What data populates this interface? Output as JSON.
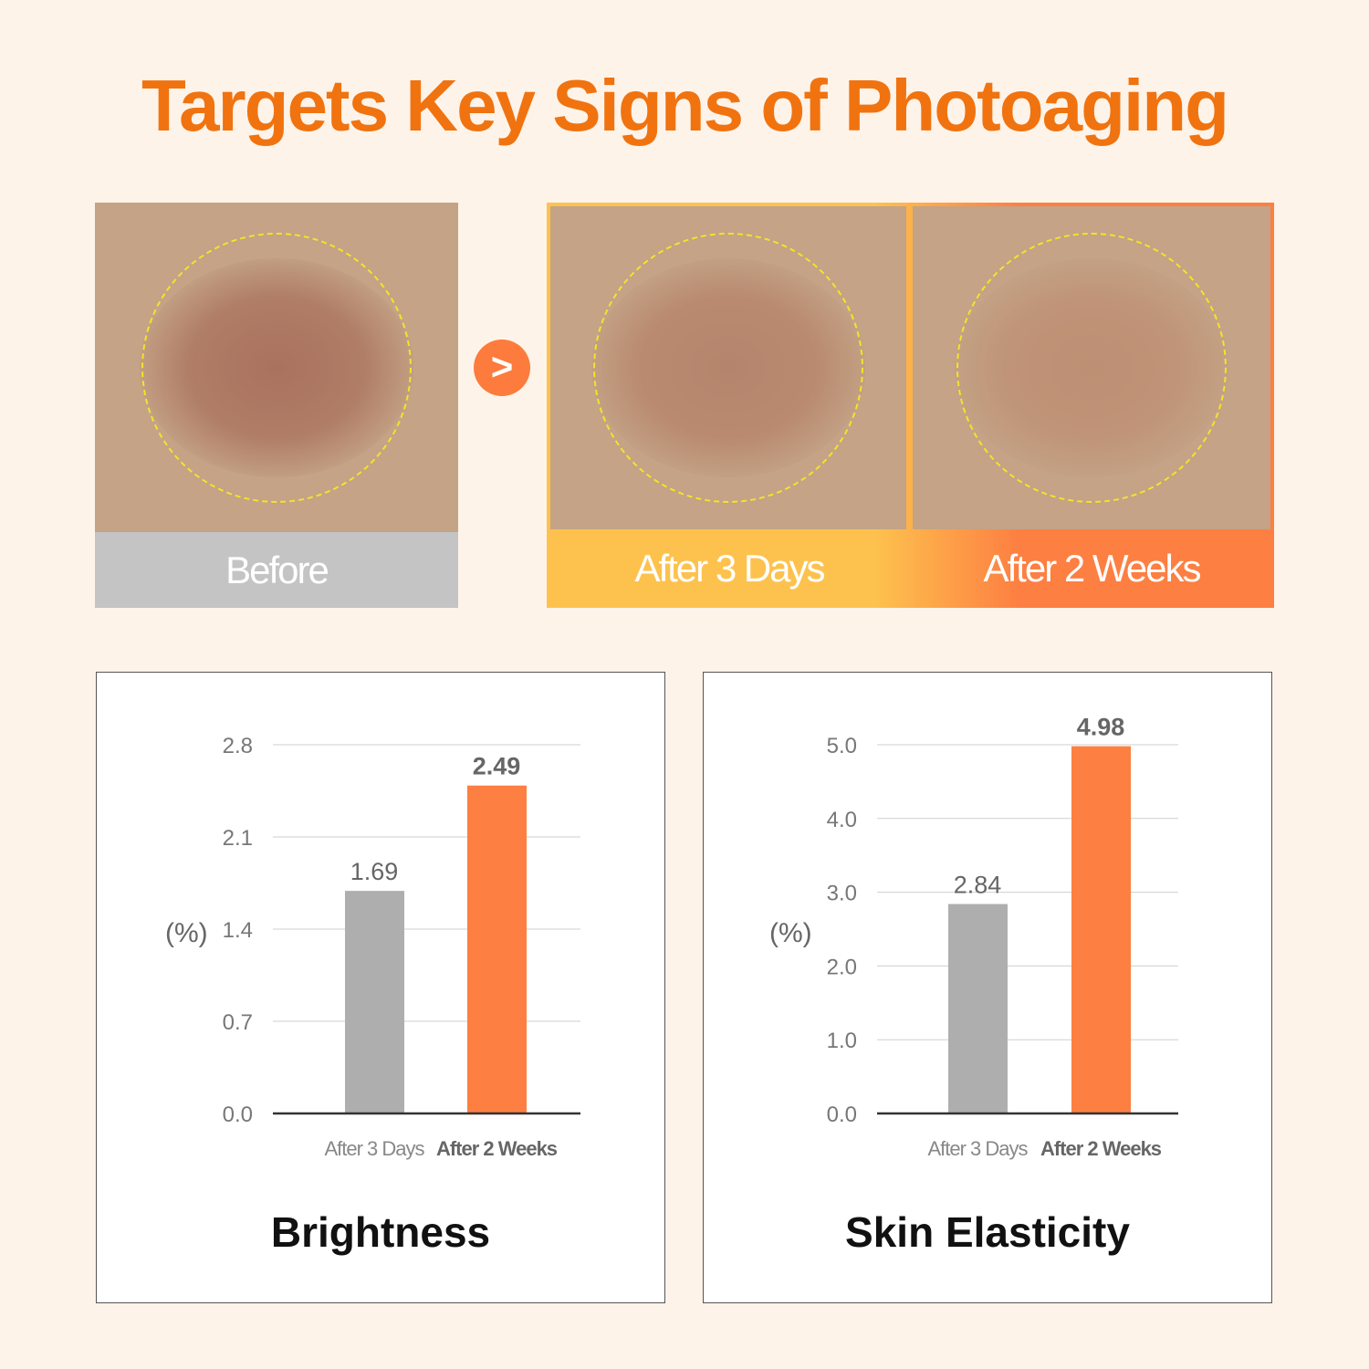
{
  "title": "Targets Key Signs of Photoaging",
  "photos": {
    "before": "Before",
    "after_3_days": "After 3 Days",
    "after_2_weeks": "After 2 Weeks"
  },
  "arrow_icon": "chevron-right-icon",
  "colors": {
    "accent": "#f07310",
    "bar_gray": "#aeaeae",
    "bar_orange": "#fd7f42",
    "yellow": "#fdc24e"
  },
  "chart_data": [
    {
      "type": "bar",
      "title": "Brightness",
      "ylabel": "(%)",
      "categories": [
        "After 3 Days",
        "After 2 Weeks"
      ],
      "values": [
        1.69,
        2.49
      ],
      "value_labels": [
        "1.69",
        "2.49"
      ],
      "ylim": [
        0,
        2.8
      ],
      "yticks": [
        "0.0",
        "0.7",
        "1.4",
        "2.1",
        "2.8"
      ],
      "grid": true
    },
    {
      "type": "bar",
      "title": "Skin Elasticity",
      "ylabel": "(%)",
      "categories": [
        "After 3 Days",
        "After 2 Weeks"
      ],
      "values": [
        2.84,
        4.98
      ],
      "value_labels": [
        "2.84",
        "4.98"
      ],
      "ylim": [
        0,
        5.0
      ],
      "yticks": [
        "0.0",
        "1.0",
        "2.0",
        "3.0",
        "4.0",
        "5.0"
      ],
      "grid": true
    }
  ]
}
